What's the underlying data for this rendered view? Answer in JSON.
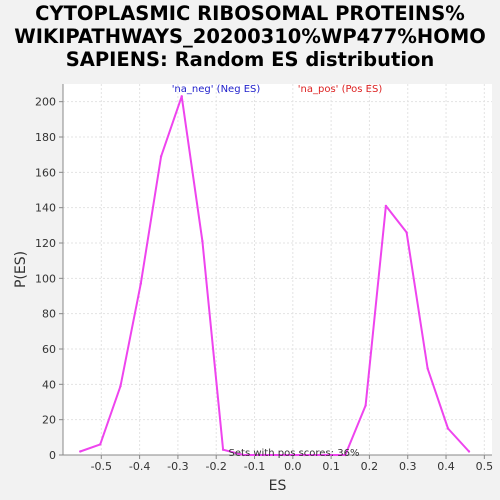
{
  "chart_data": {
    "type": "line",
    "title_lines": [
      "CYTOPLASMIC RIBOSOMAL PROTEINS%",
      "WIKIPATHWAYS_20200310%WP477%HOMO",
      "SAPIENS: Random ES distribution"
    ],
    "xlabel": "ES",
    "ylabel": "P(ES)",
    "xlim": [
      -0.6,
      0.52
    ],
    "ylim": [
      0,
      210
    ],
    "xticks": [
      -0.5,
      -0.4,
      -0.3,
      -0.2,
      -0.1,
      0.0,
      0.1,
      0.2,
      0.3,
      0.4,
      0.5
    ],
    "xtick_labels": [
      "-0.5",
      "-0.4",
      "-0.3",
      "-0.2",
      "-0.1",
      "0.0",
      "0.1",
      "0.2",
      "0.3",
      "0.4",
      "0.5"
    ],
    "yticks": [
      0,
      20,
      40,
      60,
      80,
      100,
      120,
      140,
      160,
      180,
      200
    ],
    "ytick_labels": [
      "0",
      "20",
      "40",
      "60",
      "80",
      "100",
      "120",
      "140",
      "160",
      "180",
      "200"
    ],
    "grid": true,
    "legend": {
      "placement": "top",
      "entries": [
        {
          "label": "'na_neg' (Neg ES)",
          "color": "#2222cc"
        },
        {
          "label": "'na_pos' (Pos ES)",
          "color": "#dd2222"
        }
      ]
    },
    "line_color": "#ee44ee",
    "series": [
      {
        "x": [
          -0.555,
          -0.503,
          -0.45,
          -0.397,
          -0.344,
          -0.29,
          -0.236,
          -0.182,
          -0.129,
          -0.075,
          -0.022,
          0.03,
          0.084,
          0.137,
          0.19,
          0.243,
          0.297,
          0.352,
          0.405,
          0.46
        ],
        "values": [
          2,
          6,
          39,
          97,
          169,
          203,
          121,
          3,
          0,
          0,
          0,
          0,
          0,
          0,
          28,
          141,
          126,
          49,
          15,
          2
        ]
      }
    ],
    "annotation": "Sets with pos scores: 36%"
  }
}
